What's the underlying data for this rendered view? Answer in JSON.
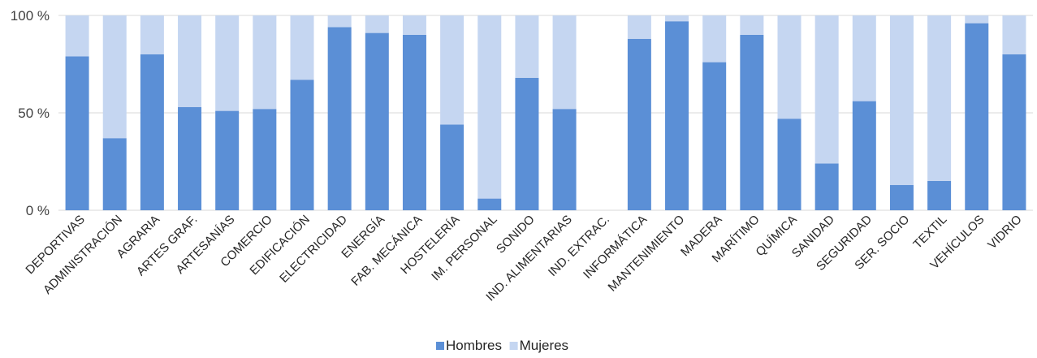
{
  "chart_data": {
    "type": "bar",
    "stacked": true,
    "percent": true,
    "categories": [
      "DEPORTIVAS",
      "ADMINISTRACIÓN",
      "AGRARIA",
      "ARTES GRAF.",
      "ARTESANÍAS",
      "COMERCIO",
      "EDIFICACIÓN",
      "ELECTRICIDAD",
      "ENERGÍA",
      "FAB. MECÁNICA",
      "HOSTELERÍA",
      "IM. PERSONAL",
      "SONIDO",
      "IND. ALIMENTARIAS",
      "IND. EXTRAC.",
      "INFORMÁTICA",
      "MANTENIMIENTO",
      "MADERA",
      "MARÍTIMO",
      "QUÍMICA",
      "SANIDAD",
      "SEGURIDAD",
      "SER. SOCIO",
      "TEXTIL",
      "VEHÍCULOS",
      "VIDRIO"
    ],
    "series": [
      {
        "name": "Hombres",
        "color": "#5b8fd6",
        "values": [
          79,
          37,
          80,
          53,
          51,
          52,
          67,
          94,
          91,
          90,
          44,
          6,
          68,
          52,
          0,
          88,
          97,
          76,
          90,
          47,
          24,
          56,
          13,
          15,
          96,
          80
        ]
      },
      {
        "name": "Mujeres",
        "color": "#c5d6f1",
        "values": [
          21,
          63,
          20,
          47,
          49,
          48,
          33,
          6,
          9,
          10,
          56,
          94,
          32,
          48,
          0,
          12,
          3,
          24,
          10,
          53,
          76,
          44,
          87,
          85,
          4,
          20
        ]
      }
    ],
    "yticks": [
      "0 %",
      "50 %",
      "100 %"
    ],
    "ylim": [
      0,
      100
    ],
    "legend": "bottom-center",
    "grid": true
  }
}
